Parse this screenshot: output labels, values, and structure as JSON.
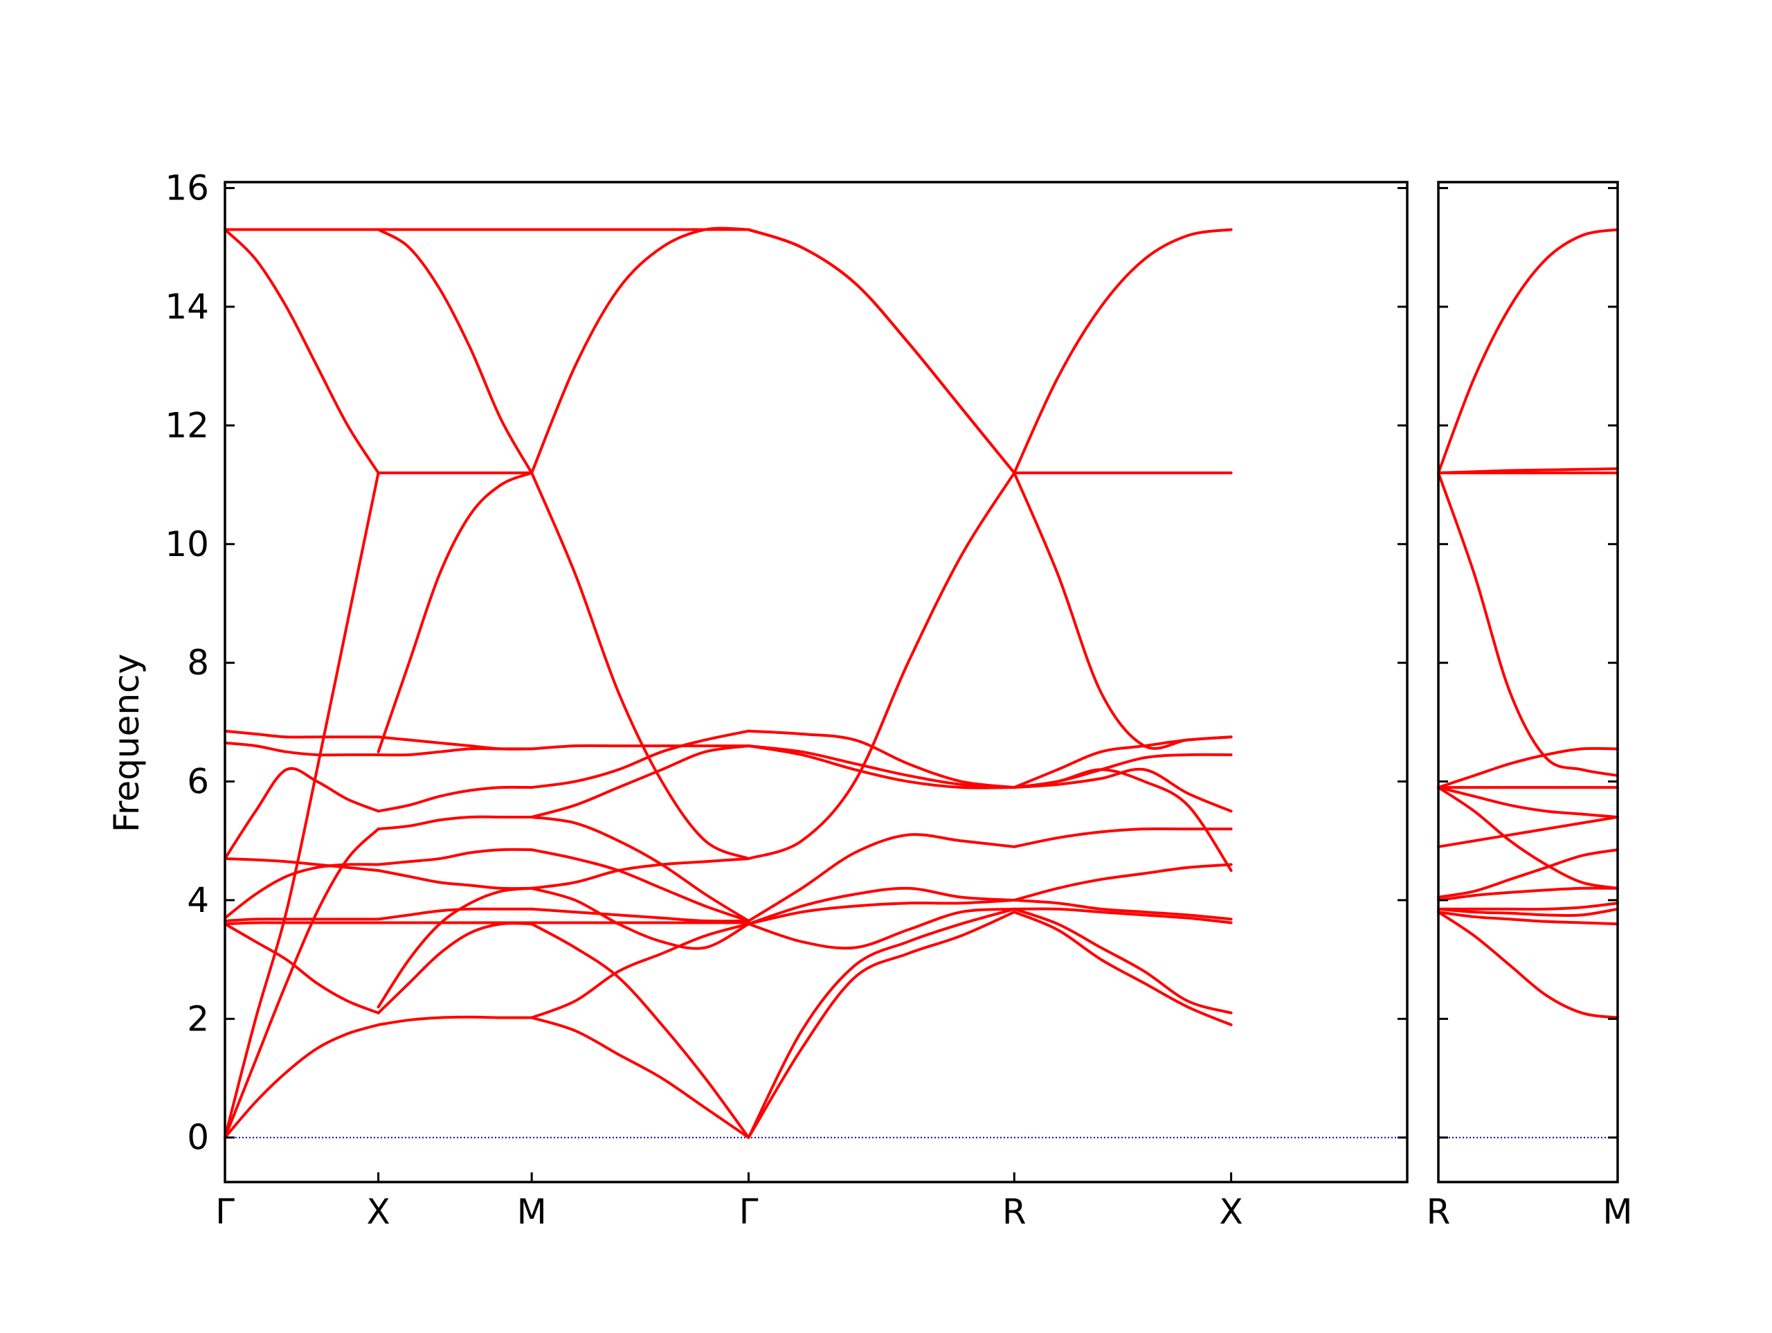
{
  "chart_data": {
    "type": "line",
    "ylabel": "Frequency",
    "ylim": [
      -0.75,
      16.1
    ],
    "yticks": [
      0,
      2,
      4,
      6,
      8,
      10,
      12,
      14,
      16
    ],
    "colors": {
      "bands": "#ff0000",
      "zero_line": "#0000cc",
      "axes": "#000000"
    },
    "zero_line": {
      "y": 0,
      "style": "dotted"
    },
    "panels": [
      {
        "name": "main",
        "x_range": [
          0,
          3.854
        ],
        "high_symmetry_points": [
          {
            "label": "Γ",
            "x": 0
          },
          {
            "label": "X",
            "x": 0.5
          },
          {
            "label": "M",
            "x": 1.0
          },
          {
            "label": "Γ",
            "x": 1.707
          },
          {
            "label": "R",
            "x": 2.573
          },
          {
            "label": "X",
            "x": 3.28
          }
        ],
        "segments": [
          {
            "from": "Γ",
            "to": "X",
            "x_start": 0,
            "x_end": 0.5,
            "bands": [
              [
                0,
                0.6,
                1.1,
                1.5,
                1.75,
                1.9
              ],
              [
                0,
                1.3,
                2.6,
                3.8,
                4.7,
                5.2
              ],
              [
                0,
                2.0,
                3.8,
                6.2,
                8.7,
                11.2
              ],
              [
                3.6,
                3.3,
                3.0,
                2.6,
                2.3,
                2.1
              ],
              [
                3.6,
                3.62,
                3.62,
                3.62,
                3.62,
                3.62
              ],
              [
                3.65,
                3.68,
                3.68,
                3.68,
                3.68,
                3.68
              ],
              [
                3.7,
                4.1,
                4.4,
                4.55,
                4.6,
                4.6
              ],
              [
                4.7,
                4.68,
                4.65,
                4.6,
                4.55,
                4.5
              ],
              [
                4.7,
                5.5,
                6.2,
                6.0,
                5.7,
                5.5
              ],
              [
                6.65,
                6.6,
                6.5,
                6.45,
                6.45,
                6.45
              ],
              [
                6.85,
                6.8,
                6.75,
                6.75,
                6.75,
                6.75
              ],
              [
                15.3,
                14.8,
                14.0,
                13.0,
                12.0,
                11.2
              ],
              [
                15.3,
                15.3,
                15.3,
                15.3,
                15.3,
                15.3
              ]
            ]
          },
          {
            "from": "X",
            "to": "M",
            "x_start": 0.5,
            "x_end": 1.0,
            "bands": [
              [
                1.9,
                1.98,
                2.02,
                2.03,
                2.02,
                2.02
              ],
              [
                2.1,
                2.6,
                3.1,
                3.45,
                3.6,
                3.6
              ],
              [
                2.2,
                3.0,
                3.6,
                3.95,
                4.15,
                4.2
              ],
              [
                3.62,
                3.62,
                3.62,
                3.62,
                3.62,
                3.62
              ],
              [
                3.68,
                3.75,
                3.82,
                3.85,
                3.85,
                3.85
              ],
              [
                4.5,
                4.4,
                4.3,
                4.25,
                4.2,
                4.2
              ],
              [
                4.6,
                4.65,
                4.7,
                4.8,
                4.85,
                4.85
              ],
              [
                5.2,
                5.25,
                5.35,
                5.4,
                5.4,
                5.4
              ],
              [
                5.5,
                5.6,
                5.75,
                5.85,
                5.9,
                5.9
              ],
              [
                6.45,
                6.45,
                6.5,
                6.55,
                6.55,
                6.55
              ],
              [
                6.75,
                6.7,
                6.65,
                6.6,
                6.55,
                6.55
              ],
              [
                11.2,
                11.2,
                11.2,
                11.2,
                11.2,
                11.2
              ],
              [
                6.5,
                8.0,
                9.5,
                10.5,
                11.0,
                11.2
              ],
              [
                15.3,
                15.0,
                14.3,
                13.3,
                12.1,
                11.2
              ],
              [
                15.3,
                15.3,
                15.3,
                15.3,
                15.3,
                15.3
              ]
            ]
          },
          {
            "from": "M",
            "to": "Γ",
            "x_start": 1.0,
            "x_end": 1.707,
            "bands": [
              [
                2.02,
                1.8,
                1.4,
                1.0,
                0.5,
                0
              ],
              [
                3.6,
                3.2,
                2.7,
                1.9,
                1.0,
                0
              ],
              [
                2.02,
                2.3,
                2.8,
                3.1,
                3.4,
                3.6
              ],
              [
                3.62,
                3.62,
                3.62,
                3.62,
                3.62,
                3.62
              ],
              [
                3.85,
                3.8,
                3.75,
                3.7,
                3.65,
                3.65
              ],
              [
                4.2,
                4.0,
                3.6,
                3.3,
                3.2,
                3.6
              ],
              [
                4.2,
                4.3,
                4.5,
                4.6,
                4.65,
                4.7
              ],
              [
                4.85,
                4.7,
                4.5,
                4.2,
                3.9,
                3.65
              ],
              [
                5.4,
                5.3,
                5.0,
                4.6,
                4.1,
                3.65
              ],
              [
                5.4,
                5.6,
                5.9,
                6.2,
                6.5,
                6.6
              ],
              [
                5.9,
                6.0,
                6.2,
                6.5,
                6.7,
                6.85
              ],
              [
                6.55,
                6.6,
                6.6,
                6.6,
                6.6,
                6.6
              ],
              [
                11.2,
                9.5,
                7.5,
                6.0,
                5.0,
                4.7
              ],
              [
                11.2,
                13.0,
                14.3,
                15.0,
                15.3,
                15.3
              ],
              [
                15.3,
                15.3,
                15.3,
                15.3,
                15.3,
                15.3
              ]
            ]
          },
          {
            "from": "Γ",
            "to": "R",
            "x_start": 1.707,
            "x_end": 2.573,
            "bands": [
              [
                0,
                1.5,
                2.7,
                3.1,
                3.4,
                3.8
              ],
              [
                0,
                1.8,
                2.9,
                3.3,
                3.6,
                3.85
              ],
              [
                3.6,
                3.3,
                3.2,
                3.5,
                3.8,
                3.85
              ],
              [
                3.6,
                3.8,
                3.9,
                3.95,
                3.95,
                4.0
              ],
              [
                3.6,
                3.9,
                4.1,
                4.2,
                4.05,
                4.0
              ],
              [
                3.65,
                4.2,
                4.8,
                5.1,
                5.0,
                4.9
              ],
              [
                4.7,
                5.0,
                6.0,
                8.0,
                9.8,
                11.2
              ],
              [
                6.6,
                6.5,
                6.3,
                6.1,
                5.95,
                5.9
              ],
              [
                6.6,
                6.45,
                6.2,
                6.0,
                5.9,
                5.9
              ],
              [
                6.85,
                6.8,
                6.7,
                6.3,
                6.0,
                5.9
              ],
              [
                15.3,
                15.0,
                14.4,
                13.4,
                12.3,
                11.2
              ],
              [
                15.3,
                15.0,
                14.4,
                13.4,
                12.3,
                11.2
              ]
            ]
          },
          {
            "from": "R",
            "to": "X",
            "x_start": 2.573,
            "x_end": 3.28,
            "bands": [
              [
                3.8,
                3.5,
                3.0,
                2.6,
                2.2,
                1.9
              ],
              [
                3.85,
                3.6,
                3.2,
                2.8,
                2.3,
                2.1
              ],
              [
                3.85,
                3.85,
                3.8,
                3.75,
                3.7,
                3.62
              ],
              [
                4.0,
                3.95,
                3.85,
                3.8,
                3.75,
                3.68
              ],
              [
                4.0,
                4.2,
                4.35,
                4.45,
                4.55,
                4.6
              ],
              [
                4.9,
                5.05,
                5.15,
                5.2,
                5.2,
                5.2
              ],
              [
                5.9,
                6.0,
                6.2,
                6.0,
                5.6,
                4.5
              ],
              [
                5.9,
                5.95,
                6.05,
                6.2,
                5.8,
                5.5
              ],
              [
                5.9,
                6.0,
                6.2,
                6.4,
                6.45,
                6.45
              ],
              [
                5.9,
                6.2,
                6.5,
                6.6,
                6.7,
                6.75
              ],
              [
                11.2,
                9.5,
                7.5,
                6.6,
                6.7,
                6.75
              ],
              [
                11.2,
                11.2,
                11.2,
                11.2,
                11.2,
                11.2
              ],
              [
                11.2,
                12.8,
                14.0,
                14.8,
                15.2,
                15.3
              ]
            ]
          }
        ]
      },
      {
        "name": "secondary",
        "x_range": [
          0,
          0.5
        ],
        "high_symmetry_points": [
          {
            "label": "R",
            "x": 0
          },
          {
            "label": "M",
            "x": 0.5
          }
        ],
        "segments": [
          {
            "from": "R",
            "to": "M",
            "x_start": 0,
            "x_end": 0.5,
            "bands": [
              [
                3.8,
                3.4,
                2.9,
                2.4,
                2.1,
                2.02
              ],
              [
                3.8,
                3.72,
                3.68,
                3.64,
                3.62,
                3.6
              ],
              [
                3.85,
                3.8,
                3.78,
                3.75,
                3.75,
                3.85
              ],
              [
                3.85,
                3.85,
                3.85,
                3.85,
                3.88,
                3.95
              ],
              [
                4.0,
                4.08,
                4.13,
                4.17,
                4.2,
                4.2
              ],
              [
                4.05,
                4.15,
                4.35,
                4.55,
                4.75,
                4.85
              ],
              [
                4.9,
                5.0,
                5.1,
                5.2,
                5.3,
                5.4
              ],
              [
                5.9,
                5.5,
                5.0,
                4.6,
                4.3,
                4.2
              ],
              [
                5.9,
                5.75,
                5.6,
                5.5,
                5.45,
                5.4
              ],
              [
                5.9,
                5.9,
                5.9,
                5.9,
                5.9,
                5.9
              ],
              [
                5.9,
                6.1,
                6.3,
                6.45,
                6.55,
                6.55
              ],
              [
                11.2,
                9.5,
                7.5,
                6.4,
                6.2,
                6.1
              ],
              [
                11.2,
                11.2,
                11.2,
                11.2,
                11.2,
                11.2
              ],
              [
                11.2,
                11.22,
                11.24,
                11.25,
                11.26,
                11.27
              ],
              [
                11.2,
                12.8,
                14.0,
                14.8,
                15.2,
                15.3
              ]
            ]
          }
        ]
      }
    ]
  }
}
